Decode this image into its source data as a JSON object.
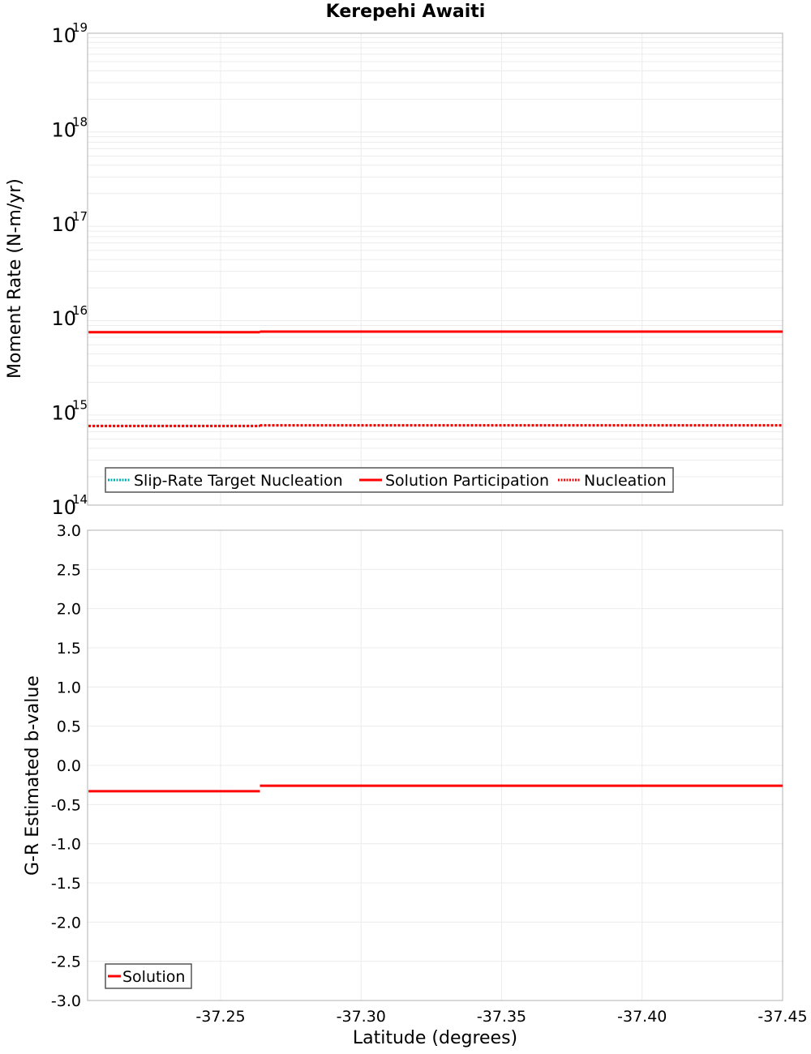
{
  "title": "Kerepehi Awaiti",
  "chart_data": [
    {
      "type": "line",
      "title": "Kerepehi Awaiti",
      "xlabel": "Latitude (degrees)",
      "ylabel": "Moment Rate (N-m/yr)",
      "yscale": "log",
      "ylim": [
        100000000000000.0,
        1e+19
      ],
      "xlim": [
        -37.203,
        -37.45
      ],
      "y_tick_labels": [
        "10^19",
        "10^18",
        "10^17",
        "10^16",
        "10^15",
        "10^14"
      ],
      "grid": true,
      "legend_position": "lower left",
      "series": [
        {
          "name": "Slip-Rate Target Nucleation",
          "style": "dotted",
          "color": "#00b0b0",
          "x": [
            -37.203,
            -37.264,
            -37.264,
            -37.45
          ],
          "values": [
            690000000000000.0,
            690000000000000.0,
            700000000000000.0,
            700000000000000.0
          ]
        },
        {
          "name": "Solution Participation",
          "style": "solid",
          "color": "#ff0000",
          "x": [
            -37.203,
            -37.264,
            -37.264,
            -37.45
          ],
          "values": [
            6800000000000000.0,
            6800000000000000.0,
            6900000000000000.0,
            6900000000000000.0
          ]
        },
        {
          "name": "Nucleation",
          "style": "dotted",
          "color": "#ff0000",
          "x": [
            -37.203,
            -37.264,
            -37.264,
            -37.45
          ],
          "values": [
            690000000000000.0,
            690000000000000.0,
            700000000000000.0,
            700000000000000.0
          ]
        }
      ]
    },
    {
      "type": "line",
      "xlabel": "Latitude (degrees)",
      "ylabel": "G-R Estimated b-value",
      "ylim": [
        -3.0,
        3.0
      ],
      "xlim": [
        -37.203,
        -37.45
      ],
      "y_tick_labels": [
        "3.0",
        "2.5",
        "2.0",
        "1.5",
        "1.0",
        "0.5",
        "0.0",
        "-0.5",
        "-1.0",
        "-1.5",
        "-2.0",
        "-2.5",
        "-3.0"
      ],
      "x_tick_labels": [
        "-37.25",
        "-37.30",
        "-37.35",
        "-37.40",
        "-37.45"
      ],
      "grid": true,
      "legend_position": "lower left",
      "series": [
        {
          "name": "Solution",
          "style": "solid",
          "color": "#ff0000",
          "x": [
            -37.203,
            -37.264,
            -37.264,
            -37.45
          ],
          "values": [
            -0.33,
            -0.33,
            -0.26,
            -0.26
          ]
        }
      ]
    }
  ],
  "top": {
    "ylabel": "Moment Rate (N-m/yr)",
    "legend": [
      "Slip-Rate Target Nucleation",
      "Solution Participation",
      "Nucleation"
    ]
  },
  "bottom": {
    "ylabel": "G-R Estimated b-value",
    "xlabel": "Latitude (degrees)",
    "legend": [
      "Solution"
    ]
  }
}
